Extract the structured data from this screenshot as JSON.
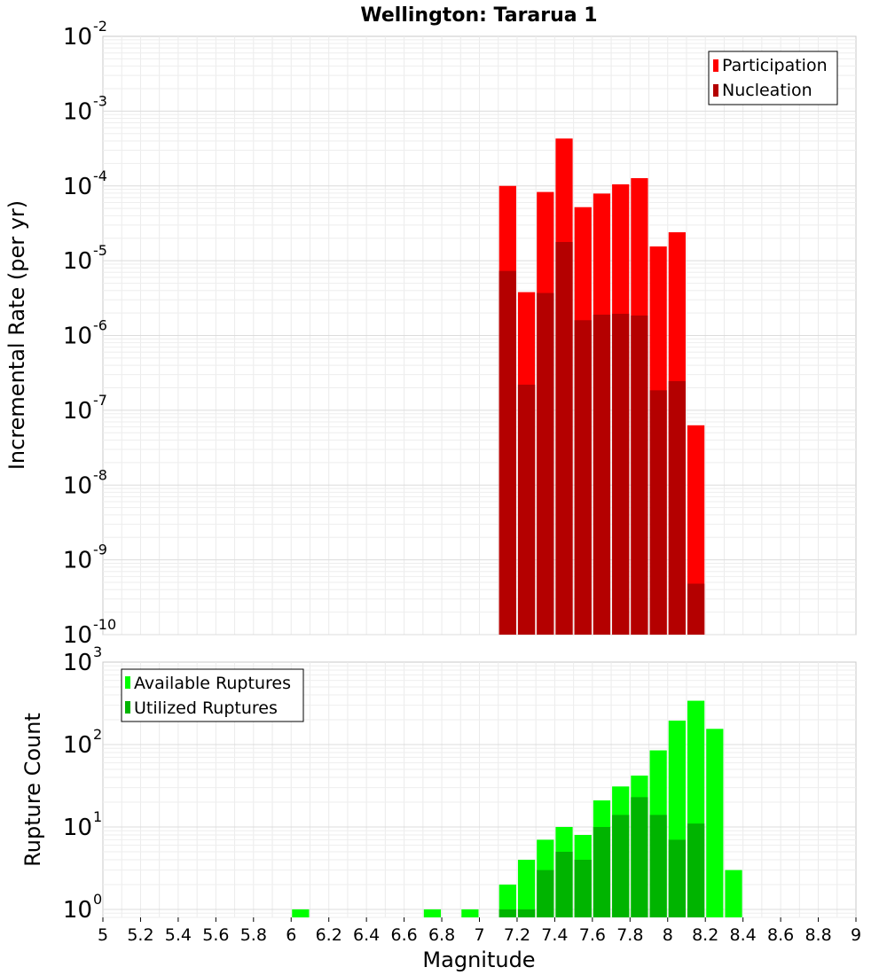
{
  "chart_data": [
    {
      "type": "bar",
      "title": "Wellington: Tararua 1",
      "ylabel": "Incremental Rate (per yr)",
      "xlabel": "",
      "ylog": true,
      "ylim": [
        1e-10,
        0.01
      ],
      "xlim": [
        5,
        9
      ],
      "y_tick_exponents": [
        "-10",
        "-9",
        "-8",
        "-7",
        "-6",
        "-5",
        "-4",
        "-3",
        "-2"
      ],
      "grid": true,
      "legend_position": "top-right",
      "overlaid": true,
      "x": [
        7.15,
        7.25,
        7.35,
        7.45,
        7.55,
        7.65,
        7.75,
        7.85,
        7.95,
        8.05,
        8.15
      ],
      "series": [
        {
          "name": "Participation",
          "color": "#ff0000",
          "values": [
            0.0001,
            3.8e-06,
            8.3e-05,
            0.00043,
            5.2e-05,
            7.9e-05,
            0.000105,
            0.000127,
            1.55e-05,
            2.4e-05,
            6.3e-08
          ]
        },
        {
          "name": "Nucleation",
          "color": "#b40000",
          "values": [
            7.3e-06,
            2.2e-07,
            3.7e-06,
            1.78e-05,
            1.6e-06,
            1.9e-06,
            1.95e-06,
            1.85e-06,
            1.85e-07,
            2.45e-07,
            4.8e-10
          ]
        }
      ]
    },
    {
      "type": "bar",
      "title": "",
      "ylabel": "Rupture Count",
      "xlabel": "Magnitude",
      "ylog": true,
      "ylim": [
        0.8,
        1000
      ],
      "xlim": [
        5,
        9
      ],
      "x_ticks": [
        "5",
        "5.2",
        "5.4",
        "5.6",
        "5.8",
        "6",
        "6.2",
        "6.4",
        "6.6",
        "6.8",
        "7",
        "7.2",
        "7.4",
        "7.6",
        "7.8",
        "8",
        "8.2",
        "8.4",
        "8.6",
        "8.8",
        "9"
      ],
      "y_tick_exponents": [
        "0",
        "1",
        "2",
        "3"
      ],
      "grid": true,
      "legend_position": "top-left",
      "overlaid": true,
      "x": [
        6.05,
        6.75,
        6.95,
        7.15,
        7.25,
        7.35,
        7.45,
        7.55,
        7.65,
        7.75,
        7.85,
        7.95,
        8.05,
        8.15,
        8.25,
        8.35
      ],
      "series": [
        {
          "name": "Available Ruptures",
          "color": "#00ff00",
          "values": [
            1,
            1,
            1,
            2,
            4,
            7,
            10,
            8,
            21,
            31,
            42,
            85,
            195,
            340,
            155,
            3
          ]
        },
        {
          "name": "Utilized Ruptures",
          "color": "#00b400",
          "values": [
            0,
            0,
            0,
            1,
            1,
            3,
            5,
            4,
            10,
            14,
            23,
            14,
            7,
            11,
            0,
            0
          ]
        }
      ]
    }
  ]
}
